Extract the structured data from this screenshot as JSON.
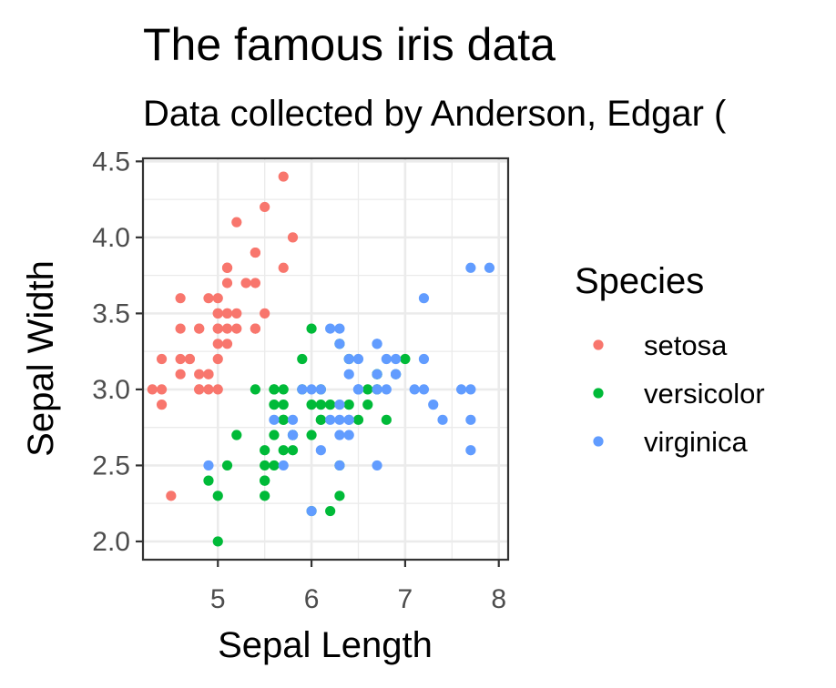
{
  "chart_data": {
    "type": "scatter",
    "title": "The famous iris data",
    "subtitle": "Data collected by Anderson, Edgar (",
    "xlabel": "Sepal Length",
    "ylabel": "Sepal Width",
    "xlim": [
      4.2,
      8.1
    ],
    "ylim": [
      1.88,
      4.52
    ],
    "xticks": [
      "5",
      "6",
      "7",
      "8"
    ],
    "yticks": [
      "2.0",
      "2.5",
      "3.0",
      "3.5",
      "4.0",
      "4.5"
    ],
    "grid": true,
    "legend": {
      "title": "Species",
      "position": "right"
    },
    "series": [
      {
        "name": "setosa",
        "color": "#F8766D",
        "points": [
          [
            5.1,
            3.5
          ],
          [
            4.9,
            3.0
          ],
          [
            4.7,
            3.2
          ],
          [
            4.6,
            3.1
          ],
          [
            5.0,
            3.6
          ],
          [
            5.4,
            3.9
          ],
          [
            4.6,
            3.4
          ],
          [
            5.0,
            3.4
          ],
          [
            4.4,
            2.9
          ],
          [
            4.9,
            3.1
          ],
          [
            5.4,
            3.7
          ],
          [
            4.8,
            3.4
          ],
          [
            4.8,
            3.0
          ],
          [
            4.3,
            3.0
          ],
          [
            5.8,
            4.0
          ],
          [
            5.7,
            4.4
          ],
          [
            5.4,
            3.9
          ],
          [
            5.1,
            3.5
          ],
          [
            5.7,
            3.8
          ],
          [
            5.1,
            3.8
          ],
          [
            5.4,
            3.4
          ],
          [
            5.1,
            3.7
          ],
          [
            4.6,
            3.6
          ],
          [
            5.1,
            3.3
          ],
          [
            4.8,
            3.4
          ],
          [
            5.0,
            3.0
          ],
          [
            5.0,
            3.4
          ],
          [
            5.2,
            3.5
          ],
          [
            5.2,
            3.4
          ],
          [
            4.7,
            3.2
          ],
          [
            4.8,
            3.1
          ],
          [
            5.4,
            3.4
          ],
          [
            5.2,
            4.1
          ],
          [
            5.5,
            4.2
          ],
          [
            4.9,
            3.1
          ],
          [
            5.0,
            3.2
          ],
          [
            5.5,
            3.5
          ],
          [
            4.9,
            3.6
          ],
          [
            4.4,
            3.0
          ],
          [
            5.1,
            3.4
          ],
          [
            5.0,
            3.5
          ],
          [
            4.5,
            2.3
          ],
          [
            4.4,
            3.2
          ],
          [
            5.0,
            3.5
          ],
          [
            5.1,
            3.8
          ],
          [
            4.8,
            3.0
          ],
          [
            5.1,
            3.8
          ],
          [
            4.6,
            3.2
          ],
          [
            5.3,
            3.7
          ],
          [
            5.0,
            3.3
          ]
        ]
      },
      {
        "name": "versicolor",
        "color": "#00BA38",
        "points": [
          [
            7.0,
            3.2
          ],
          [
            6.4,
            3.2
          ],
          [
            6.9,
            3.1
          ],
          [
            5.5,
            2.3
          ],
          [
            6.5,
            2.8
          ],
          [
            5.7,
            2.8
          ],
          [
            6.3,
            3.3
          ],
          [
            4.9,
            2.4
          ],
          [
            6.6,
            2.9
          ],
          [
            5.2,
            2.7
          ],
          [
            5.0,
            2.0
          ],
          [
            5.9,
            3.0
          ],
          [
            6.0,
            2.2
          ],
          [
            6.1,
            2.9
          ],
          [
            5.6,
            2.9
          ],
          [
            6.7,
            3.1
          ],
          [
            5.6,
            3.0
          ],
          [
            5.8,
            2.7
          ],
          [
            6.2,
            2.2
          ],
          [
            5.6,
            2.5
          ],
          [
            5.9,
            3.2
          ],
          [
            6.1,
            2.8
          ],
          [
            6.3,
            2.5
          ],
          [
            6.1,
            2.8
          ],
          [
            6.4,
            2.9
          ],
          [
            6.6,
            3.0
          ],
          [
            6.8,
            2.8
          ],
          [
            6.7,
            3.0
          ],
          [
            6.0,
            2.9
          ],
          [
            5.7,
            2.6
          ],
          [
            5.5,
            2.4
          ],
          [
            5.5,
            2.4
          ],
          [
            5.8,
            2.7
          ],
          [
            6.0,
            2.7
          ],
          [
            5.4,
            3.0
          ],
          [
            6.0,
            3.4
          ],
          [
            6.7,
            3.1
          ],
          [
            6.3,
            2.3
          ],
          [
            5.6,
            3.0
          ],
          [
            5.5,
            2.5
          ],
          [
            5.5,
            2.6
          ],
          [
            6.1,
            3.0
          ],
          [
            5.8,
            2.6
          ],
          [
            5.0,
            2.3
          ],
          [
            5.6,
            2.7
          ],
          [
            5.7,
            3.0
          ],
          [
            5.7,
            2.9
          ],
          [
            6.2,
            2.9
          ],
          [
            5.1,
            2.5
          ],
          [
            5.7,
            2.8
          ]
        ]
      },
      {
        "name": "virginica",
        "color": "#619CFF",
        "points": [
          [
            6.3,
            3.3
          ],
          [
            5.8,
            2.7
          ],
          [
            7.1,
            3.0
          ],
          [
            6.3,
            2.9
          ],
          [
            6.5,
            3.0
          ],
          [
            7.6,
            3.0
          ],
          [
            4.9,
            2.5
          ],
          [
            7.3,
            2.9
          ],
          [
            6.7,
            2.5
          ],
          [
            7.2,
            3.6
          ],
          [
            6.5,
            3.2
          ],
          [
            6.4,
            2.7
          ],
          [
            6.8,
            3.0
          ],
          [
            5.7,
            2.5
          ],
          [
            5.8,
            2.8
          ],
          [
            6.4,
            3.2
          ],
          [
            6.5,
            3.0
          ],
          [
            7.7,
            3.8
          ],
          [
            7.7,
            2.6
          ],
          [
            6.0,
            2.2
          ],
          [
            6.9,
            3.2
          ],
          [
            5.6,
            2.8
          ],
          [
            7.7,
            2.8
          ],
          [
            6.3,
            2.7
          ],
          [
            6.7,
            3.3
          ],
          [
            7.2,
            3.2
          ],
          [
            6.2,
            2.8
          ],
          [
            6.1,
            3.0
          ],
          [
            6.4,
            2.8
          ],
          [
            7.2,
            3.0
          ],
          [
            7.4,
            2.8
          ],
          [
            7.9,
            3.8
          ],
          [
            6.4,
            2.8
          ],
          [
            6.3,
            2.8
          ],
          [
            6.1,
            2.6
          ],
          [
            7.7,
            3.0
          ],
          [
            6.3,
            3.4
          ],
          [
            6.4,
            3.1
          ],
          [
            6.0,
            3.0
          ],
          [
            6.9,
            3.1
          ],
          [
            6.7,
            3.1
          ],
          [
            6.9,
            3.1
          ],
          [
            5.8,
            2.7
          ],
          [
            6.8,
            3.2
          ],
          [
            6.7,
            3.3
          ],
          [
            6.7,
            3.0
          ],
          [
            6.3,
            2.5
          ],
          [
            6.5,
            3.0
          ],
          [
            6.2,
            3.4
          ],
          [
            5.9,
            3.0
          ]
        ]
      }
    ]
  }
}
